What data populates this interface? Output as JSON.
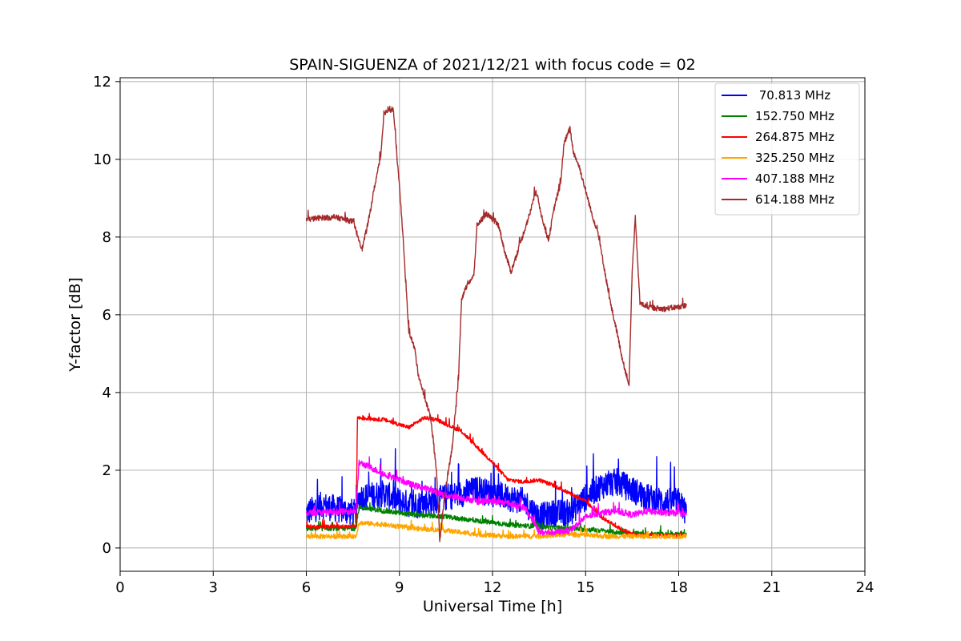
{
  "chart_data": {
    "type": "line",
    "title": "SPAIN-SIGUENZA of 2021/12/21 with focus code = 02",
    "xlabel": "Universal Time [h]",
    "ylabel": "Y-factor [dB]",
    "xlim": [
      0,
      24
    ],
    "ylim": [
      -0.6,
      12.1
    ],
    "xticks": [
      0,
      3,
      6,
      9,
      12,
      15,
      18,
      21,
      24
    ],
    "yticks": [
      0,
      2,
      4,
      6,
      8,
      10,
      12
    ],
    "xtick_labels": [
      "0",
      "3",
      "6",
      "9",
      "12",
      "15",
      "18",
      "21",
      "24"
    ],
    "ytick_labels": [
      "0",
      "2",
      "4",
      "6",
      "8",
      "10",
      "12"
    ],
    "grid": true,
    "legend_position": "top-right",
    "series": [
      {
        "name": " 70.813 MHz",
        "color": "#0000ff",
        "noise": 0.35,
        "points": [
          [
            6.0,
            0.9
          ],
          [
            6.5,
            1.1
          ],
          [
            7.0,
            1.0
          ],
          [
            7.6,
            0.9
          ],
          [
            7.7,
            1.3
          ],
          [
            8.5,
            1.4
          ],
          [
            9.0,
            1.2
          ],
          [
            9.5,
            1.1
          ],
          [
            10.0,
            1.2
          ],
          [
            10.5,
            1.3
          ],
          [
            11.0,
            1.4
          ],
          [
            11.5,
            1.5
          ],
          [
            12.0,
            1.4
          ],
          [
            12.5,
            1.3
          ],
          [
            13.0,
            1.2
          ],
          [
            13.5,
            0.8
          ],
          [
            14.0,
            0.9
          ],
          [
            14.5,
            0.9
          ],
          [
            15.0,
            1.3
          ],
          [
            15.5,
            1.6
          ],
          [
            16.0,
            1.7
          ],
          [
            16.5,
            1.5
          ],
          [
            17.0,
            1.3
          ],
          [
            17.5,
            1.2
          ],
          [
            18.0,
            1.2
          ],
          [
            18.25,
            0.9
          ]
        ]
      },
      {
        "name": "152.750 MHz",
        "color": "#008000",
        "noise": 0.06,
        "points": [
          [
            6.0,
            0.5
          ],
          [
            7.6,
            0.5
          ],
          [
            7.7,
            1.05
          ],
          [
            8.5,
            0.95
          ],
          [
            9.5,
            0.85
          ],
          [
            10.5,
            0.8
          ],
          [
            11.5,
            0.7
          ],
          [
            12.5,
            0.6
          ],
          [
            13.5,
            0.55
          ],
          [
            14.5,
            0.5
          ],
          [
            15.5,
            0.45
          ],
          [
            16.0,
            0.4
          ],
          [
            17.0,
            0.35
          ],
          [
            18.25,
            0.35
          ]
        ]
      },
      {
        "name": "264.875 MHz",
        "color": "#ff0000",
        "noise": 0.05,
        "points": [
          [
            6.0,
            0.55
          ],
          [
            7.6,
            0.55
          ],
          [
            7.65,
            3.35
          ],
          [
            8.5,
            3.3
          ],
          [
            9.3,
            3.1
          ],
          [
            9.8,
            3.35
          ],
          [
            10.2,
            3.3
          ],
          [
            11.0,
            3.0
          ],
          [
            11.5,
            2.6
          ],
          [
            12.0,
            2.2
          ],
          [
            12.5,
            1.75
          ],
          [
            13.0,
            1.7
          ],
          [
            13.5,
            1.75
          ],
          [
            14.0,
            1.6
          ],
          [
            14.5,
            1.4
          ],
          [
            15.0,
            1.2
          ],
          [
            15.5,
            0.8
          ],
          [
            16.0,
            0.55
          ],
          [
            16.5,
            0.35
          ],
          [
            18.25,
            0.3
          ]
        ]
      },
      {
        "name": "325.250 MHz",
        "color": "#ffa500",
        "noise": 0.06,
        "points": [
          [
            6.0,
            0.3
          ],
          [
            7.6,
            0.3
          ],
          [
            7.7,
            0.65
          ],
          [
            8.5,
            0.6
          ],
          [
            9.5,
            0.5
          ],
          [
            10.5,
            0.45
          ],
          [
            11.5,
            0.35
          ],
          [
            12.5,
            0.3
          ],
          [
            13.5,
            0.3
          ],
          [
            14.5,
            0.35
          ],
          [
            15.5,
            0.3
          ],
          [
            16.5,
            0.3
          ],
          [
            18.25,
            0.3
          ]
        ]
      },
      {
        "name": "407.188 MHz",
        "color": "#ff00ff",
        "noise": 0.08,
        "points": [
          [
            6.0,
            0.9
          ],
          [
            7.6,
            0.95
          ],
          [
            7.7,
            2.2
          ],
          [
            8.0,
            2.1
          ],
          [
            8.5,
            1.9
          ],
          [
            9.0,
            1.75
          ],
          [
            9.5,
            1.6
          ],
          [
            10.0,
            1.5
          ],
          [
            10.5,
            1.35
          ],
          [
            11.0,
            1.3
          ],
          [
            11.5,
            1.2
          ],
          [
            12.0,
            1.2
          ],
          [
            12.5,
            1.15
          ],
          [
            13.0,
            1.05
          ],
          [
            13.4,
            0.6
          ],
          [
            13.5,
            0.4
          ],
          [
            14.0,
            0.4
          ],
          [
            14.5,
            0.45
          ],
          [
            15.0,
            0.8
          ],
          [
            15.5,
            0.9
          ],
          [
            16.0,
            0.95
          ],
          [
            16.5,
            0.85
          ],
          [
            17.0,
            0.95
          ],
          [
            17.5,
            0.9
          ],
          [
            18.0,
            0.9
          ],
          [
            18.25,
            0.85
          ]
        ]
      },
      {
        "name": "614.188 MHz",
        "color": "#a52a2a",
        "noise": 0.07,
        "points": [
          [
            6.0,
            8.45
          ],
          [
            6.5,
            8.5
          ],
          [
            7.0,
            8.5
          ],
          [
            7.5,
            8.4
          ],
          [
            7.8,
            7.7
          ],
          [
            8.0,
            8.4
          ],
          [
            8.2,
            9.3
          ],
          [
            8.4,
            10.1
          ],
          [
            8.5,
            11.2
          ],
          [
            8.8,
            11.3
          ],
          [
            8.9,
            10.3
          ],
          [
            9.0,
            9.3
          ],
          [
            9.1,
            8.2
          ],
          [
            9.2,
            6.9
          ],
          [
            9.3,
            5.6
          ],
          [
            9.5,
            5.1
          ],
          [
            9.6,
            4.5
          ],
          [
            9.8,
            3.9
          ],
          [
            10.0,
            3.4
          ],
          [
            10.1,
            2.7
          ],
          [
            10.2,
            1.9
          ],
          [
            10.3,
            0.2
          ],
          [
            10.5,
            1.6
          ],
          [
            10.7,
            2.6
          ],
          [
            10.9,
            4.3
          ],
          [
            11.0,
            6.4
          ],
          [
            11.2,
            6.8
          ],
          [
            11.4,
            7.0
          ],
          [
            11.5,
            8.3
          ],
          [
            11.8,
            8.6
          ],
          [
            12.2,
            8.3
          ],
          [
            12.4,
            7.6
          ],
          [
            12.6,
            7.1
          ],
          [
            12.8,
            7.6
          ],
          [
            13.0,
            8.1
          ],
          [
            13.2,
            8.6
          ],
          [
            13.4,
            9.2
          ],
          [
            13.6,
            8.5
          ],
          [
            13.8,
            7.9
          ],
          [
            14.0,
            8.8
          ],
          [
            14.2,
            9.4
          ],
          [
            14.3,
            10.4
          ],
          [
            14.5,
            10.8
          ],
          [
            14.6,
            10.2
          ],
          [
            14.8,
            9.8
          ],
          [
            15.0,
            9.2
          ],
          [
            15.2,
            8.6
          ],
          [
            15.4,
            8.1
          ],
          [
            15.6,
            7.2
          ],
          [
            15.8,
            6.3
          ],
          [
            16.0,
            5.6
          ],
          [
            16.2,
            4.8
          ],
          [
            16.4,
            4.2
          ],
          [
            16.5,
            7.1
          ],
          [
            16.6,
            8.5
          ],
          [
            16.75,
            6.3
          ],
          [
            17.0,
            6.2
          ],
          [
            17.5,
            6.15
          ],
          [
            18.0,
            6.2
          ],
          [
            18.25,
            6.25
          ]
        ]
      }
    ]
  }
}
